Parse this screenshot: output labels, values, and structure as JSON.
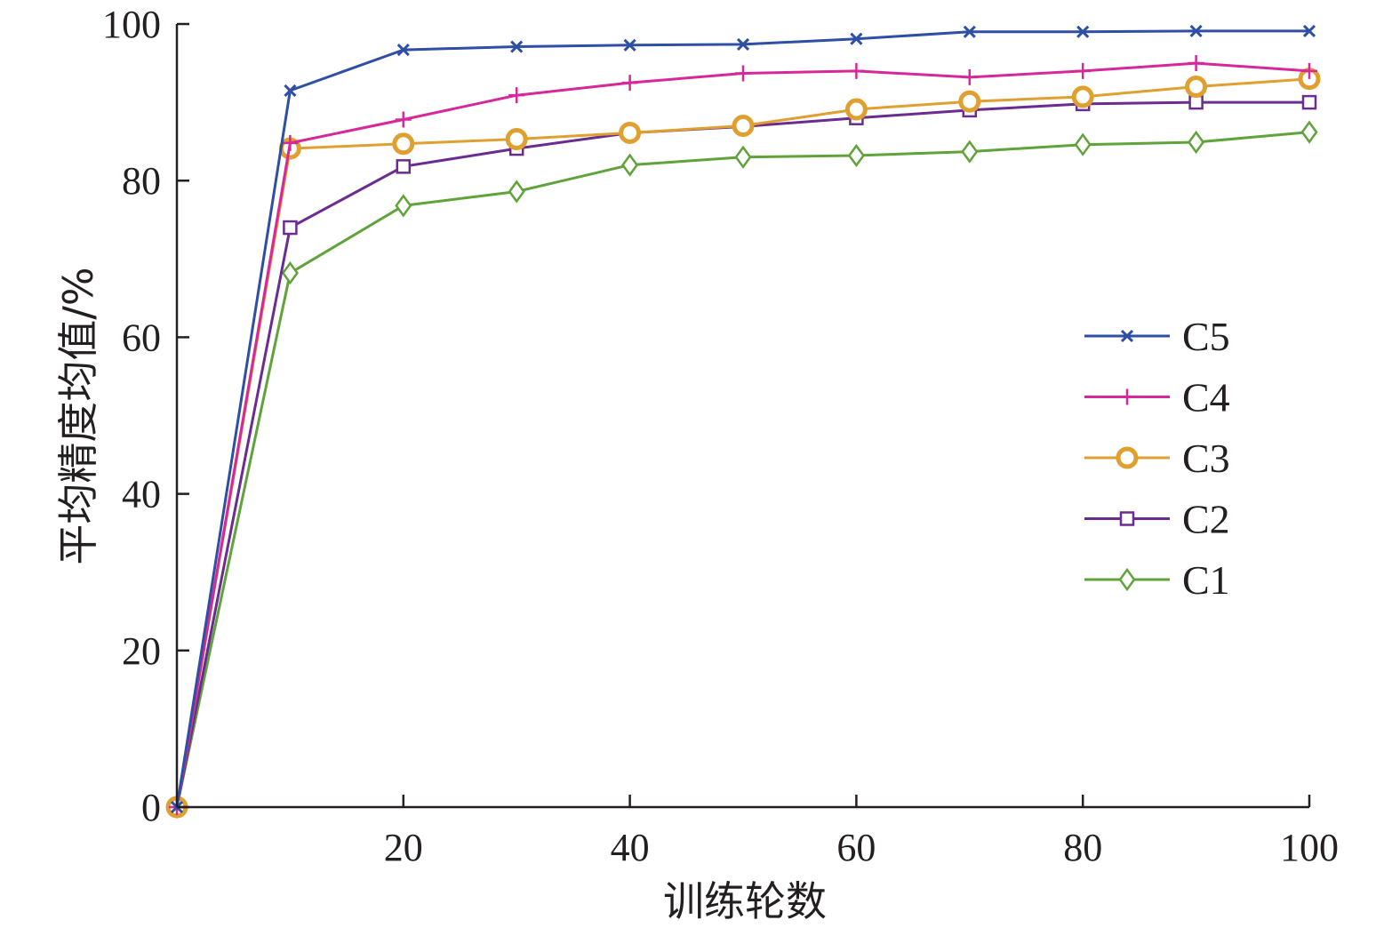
{
  "chart_data": {
    "type": "line",
    "xlabel": "训练轮数",
    "ylabel": "平均精度均值/%",
    "xlim": [
      0,
      100
    ],
    "ylim": [
      0,
      100
    ],
    "xticks": [
      20,
      40,
      60,
      80,
      100
    ],
    "xtick_labels": [
      "20",
      "40",
      "60",
      "80",
      "100"
    ],
    "yticks": [
      0,
      20,
      40,
      60,
      80,
      100
    ],
    "ytick_labels": [
      "0",
      "20",
      "40",
      "60",
      "80",
      "100"
    ],
    "grid": false,
    "legend_position": "right",
    "x": [
      0,
      10,
      20,
      30,
      40,
      50,
      60,
      70,
      80,
      90,
      100
    ],
    "series": [
      {
        "name": "C5",
        "color": "#2e4fa3",
        "marker": "x",
        "values": [
          0,
          91.5,
          96.7,
          97.1,
          97.3,
          97.4,
          98.1,
          99.0,
          99.0,
          99.1,
          99.1
        ]
      },
      {
        "name": "C4",
        "color": "#d6289a",
        "marker": "plus",
        "values": [
          0,
          84.8,
          87.8,
          90.9,
          92.5,
          93.7,
          94.0,
          93.2,
          94.0,
          95.0,
          94.0
        ]
      },
      {
        "name": "C3",
        "color": "#e0a030",
        "marker": "circle",
        "values": [
          0,
          84.1,
          84.7,
          85.3,
          86.1,
          87.0,
          89.1,
          90.1,
          90.7,
          92.0,
          93.0
        ]
      },
      {
        "name": "C2",
        "color": "#6b2c91",
        "marker": "square",
        "values": [
          0,
          74.0,
          81.8,
          84.1,
          86.1,
          86.9,
          88.0,
          89.0,
          89.8,
          90.0,
          90.0
        ]
      },
      {
        "name": "C1",
        "color": "#5fa33a",
        "marker": "diamond",
        "values": [
          0,
          68.2,
          76.8,
          78.6,
          82.0,
          83.0,
          83.2,
          83.7,
          84.6,
          84.9,
          86.2
        ]
      }
    ],
    "legend_order": [
      "C5",
      "C4",
      "C3",
      "C2",
      "C1"
    ]
  }
}
